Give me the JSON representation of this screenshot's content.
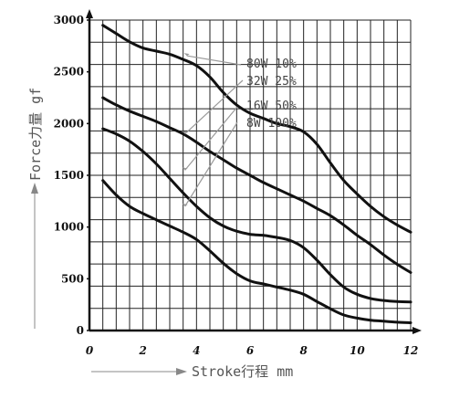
{
  "chart_data": {
    "type": "line",
    "xlabel": "Stroke行程 mm",
    "ylabel": "Force力量 gf",
    "xlim": [
      0,
      12
    ],
    "ylim": [
      0,
      3000
    ],
    "x_ticks": [
      "0",
      "2",
      "4",
      "6",
      "8",
      "10",
      "12"
    ],
    "y_ticks": [
      "0",
      "500",
      "1000",
      "1500",
      "2000",
      "2500",
      "3000"
    ],
    "grid": true,
    "series": [
      {
        "name": "80W 10%",
        "x": [
          0.5,
          1.0,
          1.5,
          2.0,
          2.5,
          3.0,
          3.5,
          4.0,
          4.5,
          5.0,
          5.5,
          6.0,
          6.5,
          7.0,
          7.5,
          8.0,
          8.5,
          9.0,
          9.5,
          10.0,
          10.5,
          11.0,
          11.5,
          12.0
        ],
        "y": [
          2950,
          2870,
          2790,
          2730,
          2700,
          2670,
          2620,
          2560,
          2450,
          2300,
          2180,
          2100,
          2050,
          2000,
          1970,
          1920,
          1800,
          1620,
          1450,
          1320,
          1200,
          1100,
          1020,
          950
        ]
      },
      {
        "name": "32W 25%",
        "x": [
          0.5,
          1.0,
          1.5,
          2.0,
          2.5,
          3.0,
          3.5,
          4.0,
          4.5,
          5.0,
          5.5,
          6.0,
          6.5,
          7.0,
          7.5,
          8.0,
          8.5,
          9.0,
          9.5,
          10.0,
          10.5,
          11.0,
          11.5,
          12.0
        ],
        "y": [
          2250,
          2180,
          2120,
          2070,
          2020,
          1960,
          1900,
          1820,
          1730,
          1650,
          1570,
          1500,
          1430,
          1370,
          1310,
          1250,
          1180,
          1110,
          1020,
          920,
          830,
          730,
          640,
          560
        ]
      },
      {
        "name": "16W 50%",
        "x": [
          0.5,
          1.0,
          1.5,
          2.0,
          2.5,
          3.0,
          3.5,
          4.0,
          4.5,
          5.0,
          5.5,
          6.0,
          6.5,
          7.0,
          7.5,
          8.0,
          8.5,
          9.0,
          9.5,
          10.0,
          10.5,
          11.0,
          11.5,
          12.0
        ],
        "y": [
          1950,
          1900,
          1830,
          1730,
          1610,
          1470,
          1330,
          1200,
          1090,
          1010,
          960,
          930,
          920,
          900,
          870,
          800,
          680,
          540,
          420,
          350,
          310,
          290,
          280,
          275
        ]
      },
      {
        "name": "8W 100%",
        "x": [
          0.5,
          1.0,
          1.5,
          2.0,
          2.5,
          3.0,
          3.5,
          4.0,
          4.5,
          5.0,
          5.5,
          6.0,
          6.5,
          7.0,
          7.5,
          8.0,
          8.5,
          9.0,
          9.5,
          10.0,
          10.5,
          11.0,
          11.5,
          12.0
        ],
        "y": [
          1450,
          1310,
          1200,
          1130,
          1070,
          1010,
          950,
          880,
          770,
          650,
          550,
          480,
          450,
          420,
          390,
          350,
          280,
          210,
          150,
          120,
          100,
          90,
          80,
          75
        ]
      }
    ],
    "annotations": [
      {
        "text": "80W 10%",
        "series": "80W 10%",
        "point": [
          3.5,
          2620
        ]
      },
      {
        "text": "32W 25%",
        "series": "32W 25%",
        "point": [
          3.5,
          1900
        ]
      },
      {
        "text": "16W 50%",
        "series": "16W 50%",
        "point": [
          3.5,
          1550
        ]
      },
      {
        "text": "8W 100%",
        "series": "8W 100%",
        "point": [
          3.5,
          1200
        ]
      }
    ],
    "colors": {
      "curve": "#111111",
      "grid": "#222222",
      "leader": "#9a9a9a",
      "text": "#222222"
    }
  }
}
